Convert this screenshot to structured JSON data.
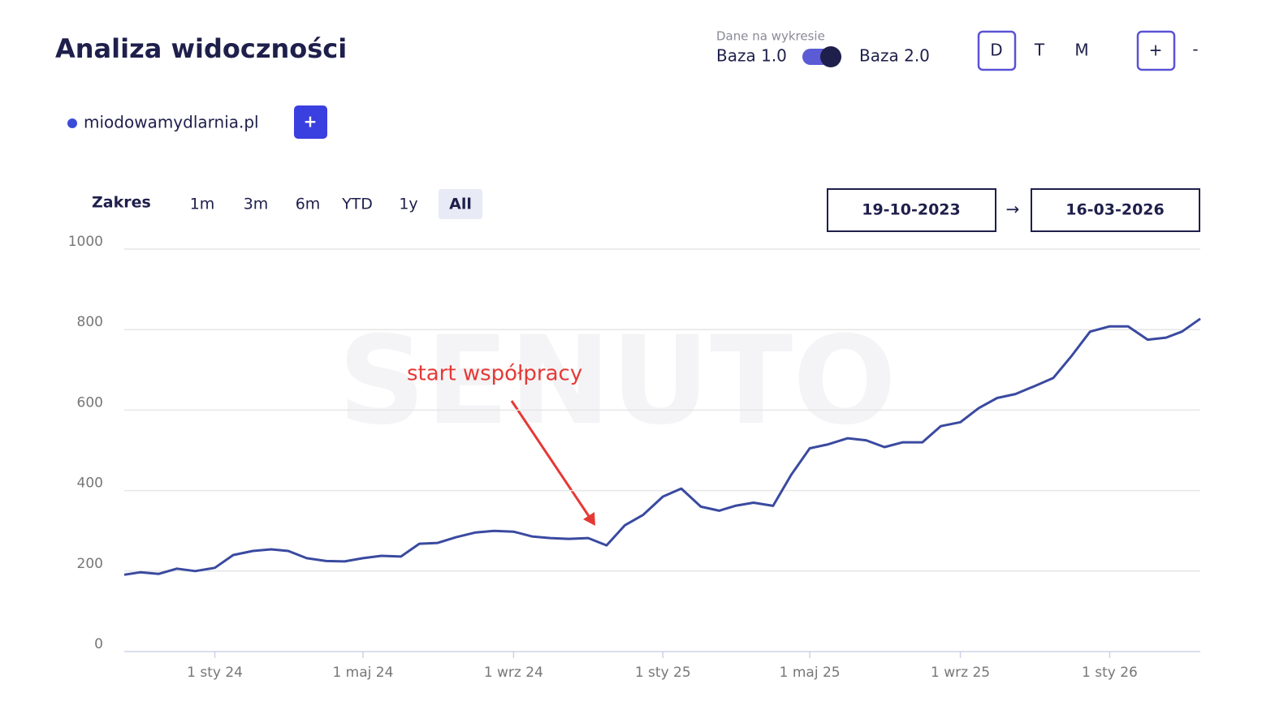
{
  "header": {
    "title": "Analiza widoczności",
    "data_source_label": "Dane na wykresie",
    "base_left": "Baza 1.0",
    "base_right": "Baza 2.0",
    "granularity": [
      "D",
      "T",
      "M"
    ],
    "zoom_in": "+",
    "zoom_out": "-"
  },
  "add_domain": "+",
  "range": {
    "label": "Zakres",
    "options": [
      "1m",
      "3m",
      "6m",
      "YTD",
      "1y",
      "All"
    ],
    "from": "19-10-2023",
    "separator": "→",
    "to": "16-03-2026"
  },
  "watermark": "SENUTO",
  "chart_data": {
    "type": "line",
    "annotation": "start współpracy",
    "x": [
      "2023-10-19",
      "2023-11-01",
      "2023-11-16",
      "2023-12-01",
      "2023-12-16",
      "2024-01-01",
      "2024-01-16",
      "2024-02-01",
      "2024-02-16",
      "2024-03-01",
      "2024-03-16",
      "2024-04-01",
      "2024-04-16",
      "2024-05-01",
      "2024-05-16",
      "2024-06-01",
      "2024-06-16",
      "2024-07-01",
      "2024-07-16",
      "2024-08-01",
      "2024-08-16",
      "2024-09-01",
      "2024-09-16",
      "2024-10-01",
      "2024-10-16",
      "2024-11-01",
      "2024-11-16",
      "2024-12-01",
      "2024-12-16",
      "2025-01-01",
      "2025-01-16",
      "2025-02-01",
      "2025-02-16",
      "2025-03-01",
      "2025-03-16",
      "2025-04-01",
      "2025-04-16",
      "2025-05-01",
      "2025-05-16",
      "2025-06-01",
      "2025-06-16",
      "2025-07-01",
      "2025-07-16",
      "2025-08-01",
      "2025-08-16",
      "2025-09-01",
      "2025-09-16",
      "2025-10-01",
      "2025-10-16",
      "2025-11-01",
      "2025-11-16",
      "2025-12-01",
      "2025-12-16",
      "2026-01-01",
      "2026-01-16",
      "2026-02-01",
      "2026-02-16",
      "2026-03-01",
      "2026-03-16"
    ],
    "series": [
      {
        "name": "miodowamydlarnia.pl",
        "color": "#3a4aa0",
        "values": [
          191,
          197,
          193,
          206,
          200,
          208,
          240,
          250,
          254,
          250,
          232,
          225,
          224,
          232,
          238,
          236,
          268,
          270,
          284,
          296,
          300,
          298,
          286,
          282,
          280,
          282,
          264,
          314,
          340,
          385,
          405,
          360,
          350,
          362,
          370,
          362,
          440,
          505,
          515,
          530,
          525,
          508,
          520,
          520,
          560,
          570,
          605,
          630,
          640,
          660,
          680,
          735,
          795,
          808,
          808,
          775,
          780,
          795,
          827
        ]
      }
    ],
    "xlim": [
      "2023-10-19",
      "2026-03-16"
    ],
    "xticks": [
      {
        "value": "2024-01-01",
        "label": "1 sty 24"
      },
      {
        "value": "2024-05-01",
        "label": "1 maj 24"
      },
      {
        "value": "2024-09-01",
        "label": "1 wrz 24"
      },
      {
        "value": "2025-01-01",
        "label": "1 sty 25"
      },
      {
        "value": "2025-05-01",
        "label": "1 maj 25"
      },
      {
        "value": "2025-09-01",
        "label": "1 wrz 25"
      },
      {
        "value": "2026-01-01",
        "label": "1 sty 26"
      }
    ],
    "ylim": [
      0,
      1000
    ],
    "yticks": [
      0,
      200,
      400,
      600,
      800,
      1000
    ],
    "grid": true
  }
}
